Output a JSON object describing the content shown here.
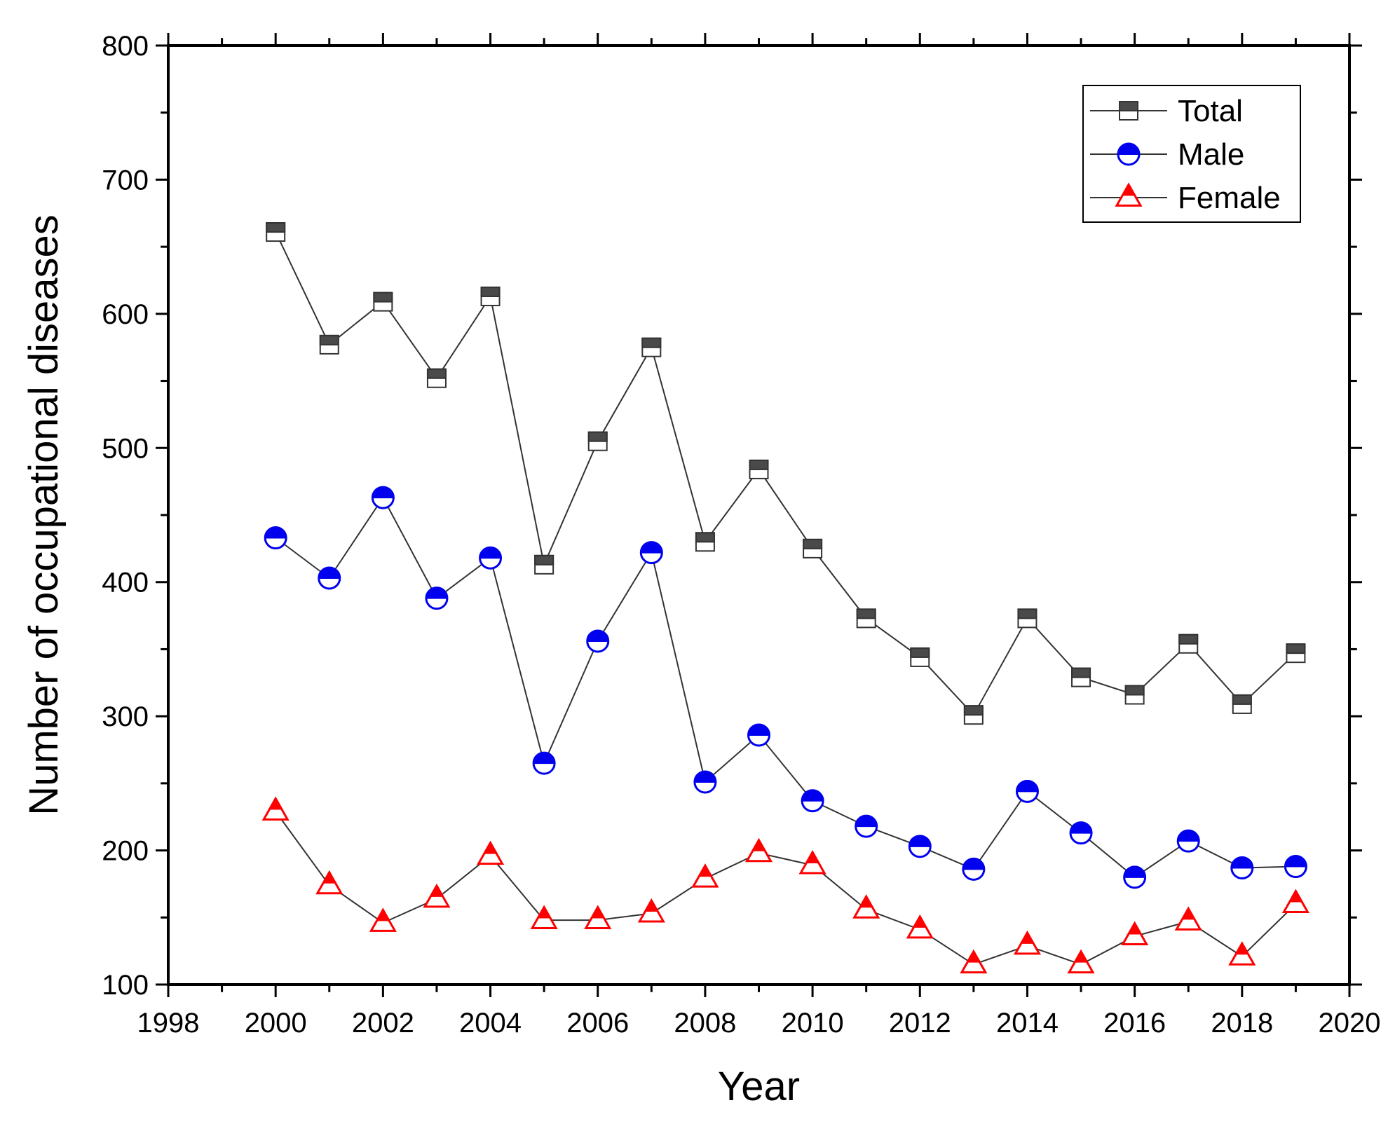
{
  "chart_data": {
    "type": "line",
    "title": "",
    "xlabel": "Year",
    "ylabel": "Number of occupational diseases",
    "xlim": [
      1998,
      2020
    ],
    "ylim": [
      100,
      800
    ],
    "xticks": [
      1998,
      2000,
      2002,
      2004,
      2006,
      2008,
      2010,
      2012,
      2014,
      2016,
      2018,
      2020
    ],
    "yticks": [
      100,
      200,
      300,
      400,
      500,
      600,
      700,
      800
    ],
    "x": [
      2000,
      2001,
      2002,
      2003,
      2004,
      2005,
      2006,
      2007,
      2008,
      2009,
      2010,
      2011,
      2012,
      2013,
      2014,
      2015,
      2016,
      2017,
      2018,
      2019
    ],
    "legend_position": "top-right",
    "series": [
      {
        "name": "Total",
        "marker": "square-half",
        "color": "#4a4a4a",
        "values": [
          661,
          577,
          609,
          552,
          613,
          413,
          505,
          575,
          430,
          484,
          425,
          373,
          344,
          301,
          373,
          329,
          316,
          354,
          309,
          347
        ]
      },
      {
        "name": "Male",
        "marker": "circle-half",
        "color": "#0000ee",
        "values": [
          433,
          403,
          463,
          388,
          418,
          265,
          356,
          422,
          251,
          286,
          237,
          218,
          203,
          186,
          244,
          213,
          180,
          207,
          187,
          188
        ]
      },
      {
        "name": "Female",
        "marker": "triangle-half",
        "color": "#ff0000",
        "values": [
          229,
          174,
          146,
          164,
          196,
          148,
          148,
          153,
          179,
          198,
          189,
          156,
          141,
          115,
          129,
          115,
          136,
          147,
          121,
          160
        ]
      }
    ]
  }
}
